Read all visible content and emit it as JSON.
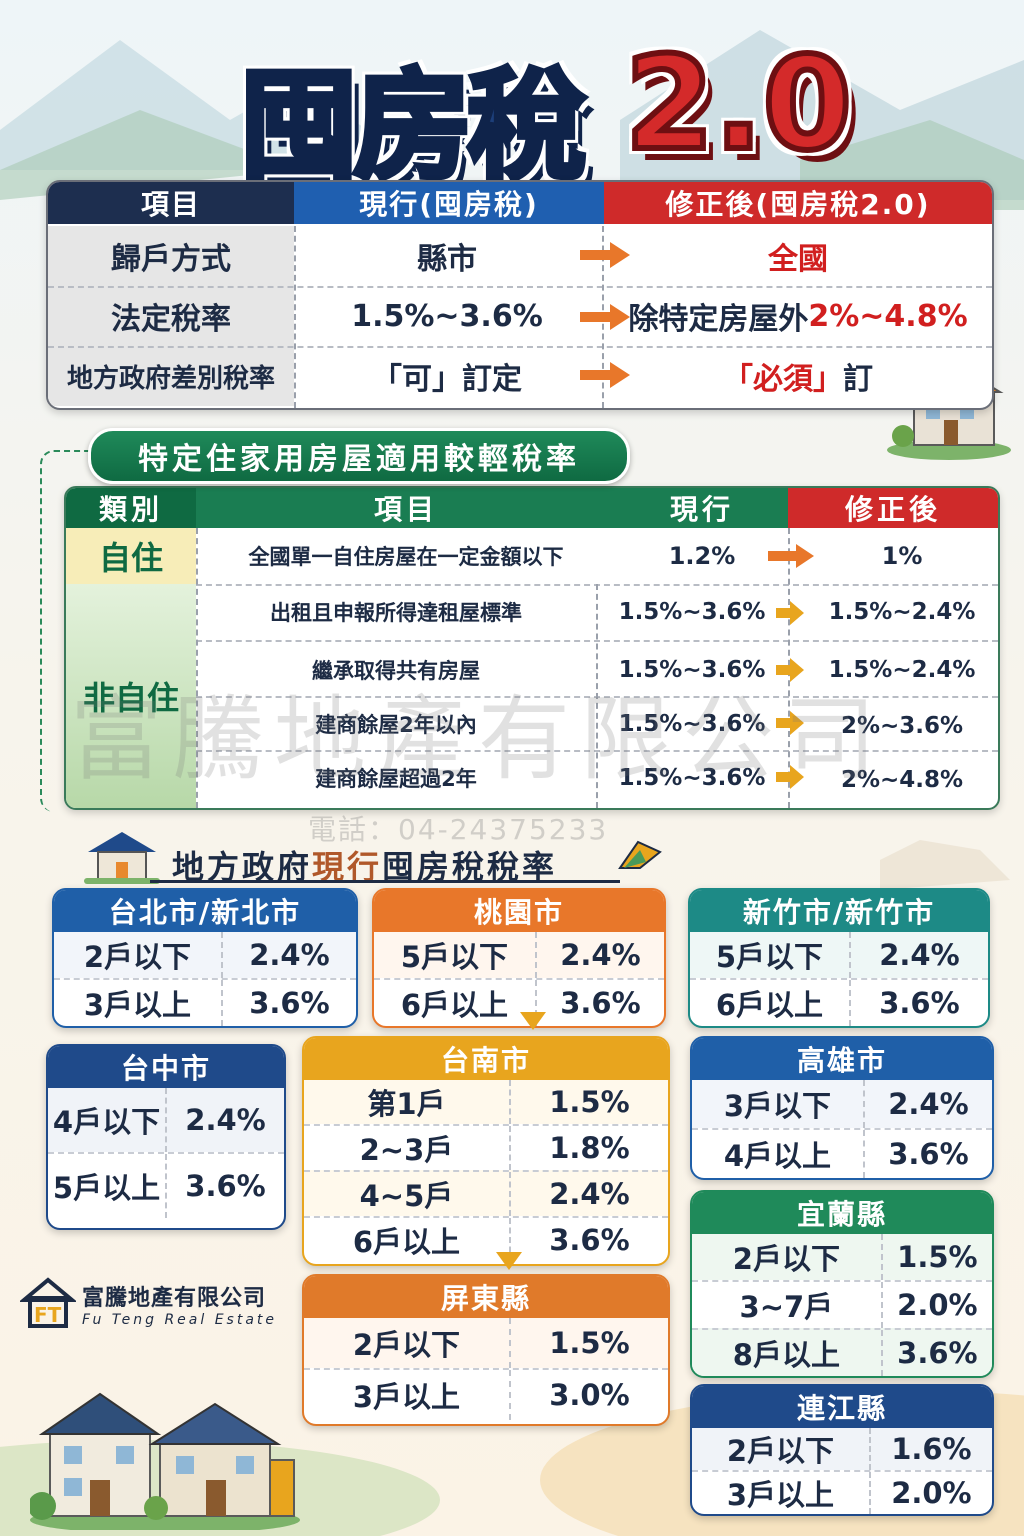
{
  "title": {
    "main": "囤房稅",
    "version": "2.0"
  },
  "comparison": {
    "headers": {
      "item": "項目",
      "current": "現行(囤房稅)",
      "revised": "修正後(囤房稅2.0)"
    },
    "rows": [
      {
        "label": "歸戶方式",
        "current": "縣市",
        "revised": "全國",
        "revised_prefix": ""
      },
      {
        "label": "法定稅率",
        "current": "1.5%~3.6%",
        "revised_prefix": "除特定房屋外",
        "revised": "2%~4.8%"
      },
      {
        "label": "地方政府差別稅率",
        "current": "「可」訂定",
        "revised": "「必須」",
        "revised_suffix": "訂"
      }
    ]
  },
  "special": {
    "banner": "特定住家用房屋適用較輕稅率",
    "headers": {
      "category": "類別",
      "item": "項目",
      "current": "現行",
      "revised": "修正後"
    },
    "self_use": {
      "category": "自住",
      "item": "全國單一自住房屋在一定金額以下",
      "current": "1.2%",
      "revised": "1%"
    },
    "non_self": {
      "category": "非自住",
      "rows": [
        {
          "item": "出租且申報所得達租屋標準",
          "current": "1.5%~3.6%",
          "revised": "1.5%~2.4%"
        },
        {
          "item": "繼承取得共有房屋",
          "current": "1.5%~3.6%",
          "revised": "1.5%~2.4%"
        },
        {
          "item": "建商餘屋2年以內",
          "current": "1.5%~3.6%",
          "revised": "2%~3.6%"
        },
        {
          "item": "建商餘屋超過2年",
          "current": "1.5%~3.6%",
          "revised": "2%~4.8%"
        }
      ]
    }
  },
  "watermark": {
    "company": "富騰地產有限公司",
    "phone": "電話：04-24375233"
  },
  "local": {
    "title_a": "地方政府",
    "title_hl": "現行",
    "title_b": "囤房稅稅率",
    "cities": [
      {
        "name": "台北市/新北市",
        "color": "#1f5fa8",
        "rows": [
          {
            "k": "2戶以下",
            "v": "2.4%"
          },
          {
            "k": "3戶以上",
            "v": "3.6%"
          }
        ]
      },
      {
        "name": "桃園市",
        "color": "#e8772a",
        "rows": [
          {
            "k": "5戶以下",
            "v": "2.4%"
          },
          {
            "k": "6戶以上",
            "v": "3.6%"
          }
        ]
      },
      {
        "name": "新竹市/新竹市",
        "color": "#1d8a86",
        "rows": [
          {
            "k": "5戶以下",
            "v": "2.4%"
          },
          {
            "k": "6戶以上",
            "v": "3.6%"
          }
        ]
      },
      {
        "name": "台中市",
        "color": "#1f4a8a",
        "rows": [
          {
            "k": "4戶以下",
            "v": "2.4%"
          },
          {
            "k": "5戶以上",
            "v": "3.6%"
          }
        ]
      },
      {
        "name": "台南市",
        "color": "#e8a51e",
        "rows": [
          {
            "k": "第1戶",
            "v": "1.5%"
          },
          {
            "k": "2~3戶",
            "v": "1.8%"
          },
          {
            "k": "4~5戶",
            "v": "2.4%"
          },
          {
            "k": "6戶以上",
            "v": "3.6%"
          }
        ]
      },
      {
        "name": "高雄市",
        "color": "#1f5fa8",
        "rows": [
          {
            "k": "3戶以下",
            "v": "2.4%"
          },
          {
            "k": "4戶以上",
            "v": "3.6%"
          }
        ]
      },
      {
        "name": "宜蘭縣",
        "color": "#1f8a5a",
        "rows": [
          {
            "k": "2戶以下",
            "v": "1.5%"
          },
          {
            "k": "3~7戶",
            "v": "2.0%"
          },
          {
            "k": "8戶以上",
            "v": "3.6%"
          }
        ]
      },
      {
        "name": "屏東縣",
        "color": "#e07a2a",
        "rows": [
          {
            "k": "2戶以下",
            "v": "1.5%"
          },
          {
            "k": "3戶以上",
            "v": "3.0%"
          }
        ]
      },
      {
        "name": "連江縣",
        "color": "#1f4a8a",
        "rows": [
          {
            "k": "2戶以下",
            "v": "1.6%"
          },
          {
            "k": "3戶以上",
            "v": "2.0%"
          }
        ]
      }
    ]
  },
  "logo": {
    "name": "富騰地產有限公司",
    "english": "Fu Teng Real Estate"
  }
}
